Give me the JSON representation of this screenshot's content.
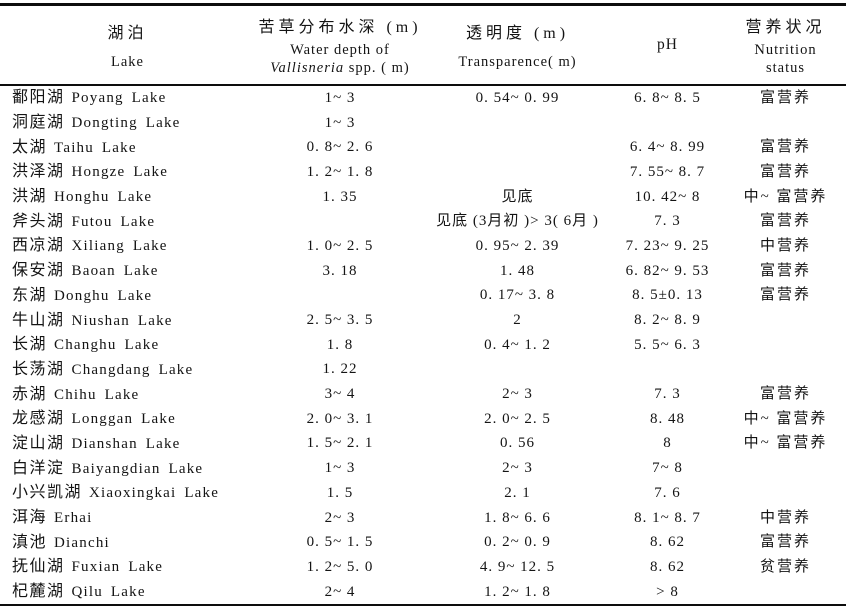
{
  "table": {
    "columns": {
      "lake": {
        "zh": "湖泊",
        "en": "Lake"
      },
      "depth": {
        "zh": "苦草分布水深 (m)",
        "en_line1": "Water depth of",
        "en_italic": "Vallisneria",
        "en_rest": " spp. ( m)"
      },
      "trans": {
        "zh": "透明度 (m)",
        "en": "Transparence( m)"
      },
      "ph": {
        "label": "pH"
      },
      "nutr": {
        "zh": "营养状况",
        "en_line1": "Nutrition",
        "en_line2": "status"
      }
    },
    "rows": [
      {
        "name_zh": "鄱阳湖",
        "name_en": "Poyang Lake",
        "depth": "1~ 3",
        "trans": "0. 54~ 0. 99",
        "ph": "6. 8~ 8. 5",
        "nutr": "富营养"
      },
      {
        "name_zh": "洞庭湖",
        "name_en": "Dongting Lake",
        "depth": "1~ 3",
        "trans": "",
        "ph": "",
        "nutr": ""
      },
      {
        "name_zh": "太湖",
        "name_en": "Taihu Lake",
        "depth": "0. 8~ 2. 6",
        "trans": "",
        "ph": "6. 4~ 8. 99",
        "nutr": "富营养"
      },
      {
        "name_zh": "洪泽湖",
        "name_en": "Hongze Lake",
        "depth": "1. 2~ 1. 8",
        "trans": "",
        "ph": "7. 55~ 8. 7",
        "nutr": "富营养"
      },
      {
        "name_zh": "洪湖",
        "name_en": "Honghu Lake",
        "depth": "1. 35",
        "trans": "见底",
        "ph": "10. 42~ 8",
        "nutr": "中~ 富营养"
      },
      {
        "name_zh": "斧头湖",
        "name_en": "Futou Lake",
        "depth": "",
        "trans": "见底 (3月初 )> 3( 6月 )",
        "ph": "7. 3",
        "nutr": "富营养"
      },
      {
        "name_zh": "西凉湖",
        "name_en": "Xiliang Lake",
        "depth": "1. 0~ 2. 5",
        "trans": "0. 95~ 2. 39",
        "ph": "7. 23~ 9. 25",
        "nutr": "中营养"
      },
      {
        "name_zh": "保安湖",
        "name_en": "Baoan Lake",
        "depth": "3. 18",
        "trans": "1. 48",
        "ph": "6. 82~ 9. 53",
        "nutr": "富营养"
      },
      {
        "name_zh": "东湖",
        "name_en": "Donghu Lake",
        "depth": "",
        "trans": "0. 17~ 3. 8",
        "ph": "8. 5±0. 13",
        "nutr": "富营养"
      },
      {
        "name_zh": "牛山湖",
        "name_en": "Niushan Lake",
        "depth": "2. 5~ 3. 5",
        "trans": "2",
        "ph": "8. 2~ 8. 9",
        "nutr": ""
      },
      {
        "name_zh": "长湖",
        "name_en": "Changhu Lake",
        "depth": "1. 8",
        "trans": "0. 4~ 1. 2",
        "ph": "5. 5~ 6. 3",
        "nutr": ""
      },
      {
        "name_zh": "长荡湖",
        "name_en": "Changdang Lake",
        "depth": "1. 22",
        "trans": "",
        "ph": "",
        "nutr": ""
      },
      {
        "name_zh": "赤湖",
        "name_en": "Chihu Lake",
        "depth": "3~ 4",
        "trans": "2~ 3",
        "ph": "7. 3",
        "nutr": "富营养"
      },
      {
        "name_zh": "龙感湖",
        "name_en": "Longgan Lake",
        "depth": "2. 0~ 3. 1",
        "trans": "2. 0~ 2. 5",
        "ph": "8. 48",
        "nutr": "中~ 富营养"
      },
      {
        "name_zh": "淀山湖",
        "name_en": "Dianshan Lake",
        "depth": "1. 5~ 2. 1",
        "trans": "0. 56",
        "ph": "8",
        "nutr": "中~ 富营养"
      },
      {
        "name_zh": "白洋淀",
        "name_en": "Baiyangdian Lake",
        "depth": "1~ 3",
        "trans": "2~ 3",
        "ph": "7~ 8",
        "nutr": ""
      },
      {
        "name_zh": "小兴凯湖",
        "name_en": "Xiaoxingkai Lake",
        "depth": "1. 5",
        "trans": "2. 1",
        "ph": "7. 6",
        "nutr": ""
      },
      {
        "name_zh": "洱海",
        "name_en": "Erhai",
        "depth": "2~ 3",
        "trans": "1. 8~ 6. 6",
        "ph": "8. 1~ 8. 7",
        "nutr": "中营养"
      },
      {
        "name_zh": "滇池",
        "name_en": "Dianchi",
        "depth": "0. 5~ 1. 5",
        "trans": "0. 2~ 0. 9",
        "ph": "8. 62",
        "nutr": "富营养"
      },
      {
        "name_zh": "抚仙湖",
        "name_en": "Fuxian Lake",
        "depth": "1. 2~ 5. 0",
        "trans": "4. 9~ 12. 5",
        "ph": "8. 62",
        "nutr": "贫营养"
      },
      {
        "name_zh": "杞麓湖",
        "name_en": "Qilu Lake",
        "depth": "2~ 4",
        "trans": "1. 2~ 1. 8",
        "ph": "> 8",
        "nutr": ""
      }
    ]
  }
}
